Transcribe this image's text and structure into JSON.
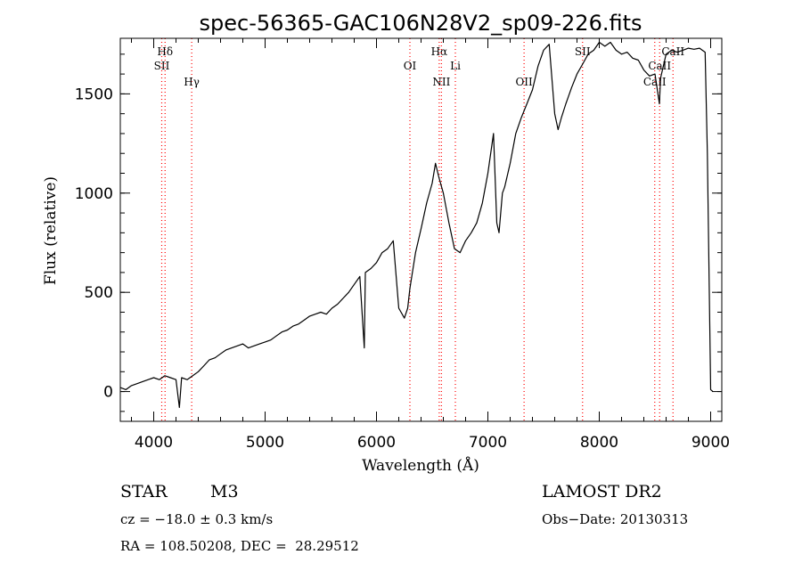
{
  "chart_data": {
    "type": "line",
    "title": "spec-56365-GAC106N28V2_sp09-226.fits",
    "xlabel": "Wavelength (Å)",
    "ylabel": "Flux (relative)",
    "xlim": [
      3700,
      9100
    ],
    "ylim": [
      -150,
      1780
    ],
    "x_ticks": [
      4000,
      5000,
      6000,
      7000,
      8000,
      9000
    ],
    "y_ticks": [
      0,
      500,
      1000,
      1500
    ],
    "grid": false,
    "line_color": "#000000",
    "marker_color": "#ff0000",
    "series": [
      {
        "x": [
          3700,
          3750,
          3800,
          3850,
          3900,
          3950,
          4000,
          4050,
          4100,
          4150,
          4200,
          4230,
          4250,
          4300,
          4350,
          4400,
          4450,
          4500,
          4550,
          4600,
          4650,
          4700,
          4750,
          4800,
          4850,
          4900,
          4950,
          5000,
          5050,
          5100,
          5150,
          5200,
          5250,
          5300,
          5350,
          5400,
          5450,
          5500,
          5550,
          5600,
          5650,
          5700,
          5750,
          5800,
          5850,
          5890,
          5900,
          5950,
          6000,
          6050,
          6100,
          6150,
          6200,
          6250,
          6280,
          6300,
          6350,
          6400,
          6450,
          6500,
          6530,
          6560,
          6600,
          6650,
          6700,
          6750,
          6800,
          6850,
          6900,
          6950,
          7000,
          7050,
          7080,
          7100,
          7130,
          7150,
          7200,
          7250,
          7300,
          7350,
          7400,
          7450,
          7500,
          7550,
          7600,
          7630,
          7660,
          7700,
          7750,
          7800,
          7850,
          7900,
          7950,
          8000,
          8050,
          8100,
          8150,
          8200,
          8250,
          8300,
          8350,
          8400,
          8450,
          8500,
          8540,
          8550,
          8600,
          8650,
          8700,
          8750,
          8800,
          8850,
          8900,
          8950,
          8970,
          9000,
          9020
        ],
        "y": [
          20,
          10,
          30,
          40,
          50,
          60,
          70,
          60,
          80,
          70,
          60,
          -80,
          70,
          60,
          80,
          100,
          130,
          160,
          170,
          190,
          210,
          220,
          230,
          240,
          220,
          230,
          240,
          250,
          260,
          280,
          300,
          310,
          330,
          340,
          360,
          380,
          390,
          400,
          390,
          420,
          440,
          470,
          500,
          540,
          580,
          220,
          600,
          620,
          650,
          700,
          720,
          760,
          420,
          370,
          420,
          520,
          700,
          820,
          950,
          1050,
          1150,
          1080,
          1000,
          850,
          720,
          700,
          760,
          800,
          850,
          950,
          1100,
          1300,
          850,
          800,
          1000,
          1030,
          1150,
          1300,
          1380,
          1450,
          1520,
          1640,
          1720,
          1750,
          1400,
          1320,
          1380,
          1450,
          1530,
          1600,
          1650,
          1700,
          1720,
          1760,
          1740,
          1760,
          1720,
          1700,
          1710,
          1680,
          1670,
          1620,
          1590,
          1600,
          1450,
          1580,
          1700,
          1720,
          1710,
          1720,
          1730,
          1725,
          1730,
          1710,
          1200,
          10,
          0
        ]
      }
    ],
    "line_markers": [
      {
        "label": "Hδ",
        "x": 4102,
        "row": 1
      },
      {
        "label": "SII",
        "x": 4072,
        "row": 2
      },
      {
        "label": "Hγ",
        "x": 4341,
        "row": 3
      },
      {
        "label": "OI",
        "x": 6300,
        "row": 2
      },
      {
        "label": "Hα",
        "x": 6563,
        "row": 1
      },
      {
        "label": "NII",
        "x": 6583,
        "row": 3
      },
      {
        "label": "Li",
        "x": 6708,
        "row": 2
      },
      {
        "label": "OII",
        "x": 7325,
        "row": 3
      },
      {
        "label": "SII",
        "x": 7850,
        "row": 1
      },
      {
        "label": "CaII",
        "x": 8498,
        "row": 3
      },
      {
        "label": "CaII",
        "x": 8542,
        "row": 2
      },
      {
        "label": "CaII",
        "x": 8662,
        "row": 1
      }
    ]
  },
  "info": {
    "object_type": "STAR",
    "subclass": "M3",
    "survey": "LAMOST DR2",
    "redshift": "cz = −18.0 ± 0.3 km/s",
    "obs_date": "Obs−Date: 20130313",
    "coordinates": "RA = 108.50208, DEC =  28.29512"
  }
}
